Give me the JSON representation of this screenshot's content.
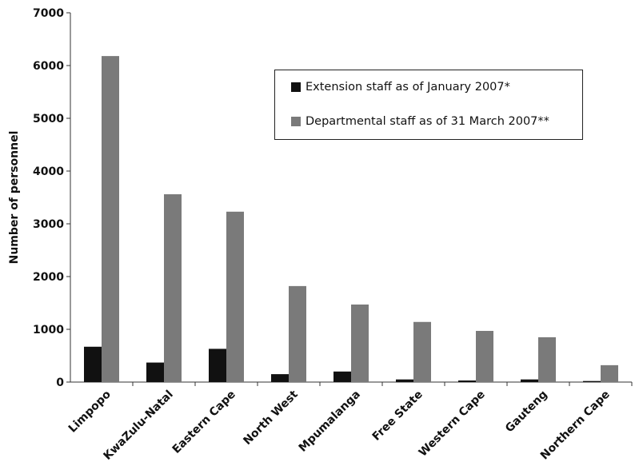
{
  "chart_data": {
    "type": "bar",
    "title": "",
    "xlabel": "",
    "ylabel": "Number of personnel",
    "ylim": [
      0,
      7000
    ],
    "yticks": [
      0,
      1000,
      2000,
      3000,
      4000,
      5000,
      6000,
      7000
    ],
    "grid": false,
    "legend_position": "top-right",
    "categories": [
      "Limpopo",
      "KwaZulu-Natal",
      "Eastern Cape",
      "North West",
      "Mpumalanga",
      "Free State",
      "Western Cape",
      "Gauteng",
      "Northern Cape"
    ],
    "series": [
      {
        "name": "Extension staff as of January 2007*",
        "color": "#111111",
        "values": [
          670,
          370,
          630,
          150,
          200,
          50,
          30,
          50,
          20
        ]
      },
      {
        "name": "Departmental staff as of 31 March 2007**",
        "color": "#7a7a7a",
        "values": [
          6180,
          3560,
          3230,
          1820,
          1470,
          1140,
          970,
          850,
          320
        ]
      }
    ]
  }
}
